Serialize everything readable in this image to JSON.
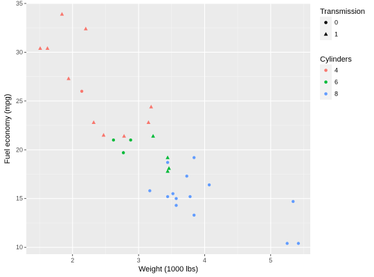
{
  "chart_data": {
    "type": "scatter",
    "title": "",
    "xlabel": "Weight (1000 lbs)",
    "ylabel": "Fuel economy (mpg)",
    "xlim": [
      1.3,
      5.6
    ],
    "ylim": [
      9.3,
      35
    ],
    "x_ticks": [
      2,
      3,
      4,
      5
    ],
    "y_ticks": [
      10,
      15,
      20,
      25,
      30,
      35
    ],
    "grid": true,
    "legend_placement": "right",
    "shape_legend": {
      "title": "Transmission",
      "entries": [
        {
          "label": "0",
          "shape": "circle"
        },
        {
          "label": "1",
          "shape": "triangle"
        }
      ]
    },
    "color_legend": {
      "title": "Cylinders",
      "entries": [
        {
          "label": "4",
          "color": "#F8766D"
        },
        {
          "label": "6",
          "color": "#00BA38"
        },
        {
          "label": "8",
          "color": "#619CFF"
        }
      ]
    },
    "points": [
      {
        "x": 1.84,
        "y": 33.9,
        "cyl": "4",
        "am": "1"
      },
      {
        "x": 2.2,
        "y": 32.4,
        "cyl": "4",
        "am": "1"
      },
      {
        "x": 1.51,
        "y": 30.4,
        "cyl": "4",
        "am": "1"
      },
      {
        "x": 1.62,
        "y": 30.4,
        "cyl": "4",
        "am": "1"
      },
      {
        "x": 1.94,
        "y": 27.3,
        "cyl": "4",
        "am": "1"
      },
      {
        "x": 2.14,
        "y": 26.0,
        "cyl": "4",
        "am": "0"
      },
      {
        "x": 3.19,
        "y": 24.4,
        "cyl": "4",
        "am": "1"
      },
      {
        "x": 3.15,
        "y": 22.8,
        "cyl": "4",
        "am": "1"
      },
      {
        "x": 2.32,
        "y": 22.8,
        "cyl": "4",
        "am": "1"
      },
      {
        "x": 2.47,
        "y": 21.5,
        "cyl": "4",
        "am": "1"
      },
      {
        "x": 2.78,
        "y": 21.4,
        "cyl": "4",
        "am": "1"
      },
      {
        "x": 3.22,
        "y": 21.4,
        "cyl": "6",
        "am": "1"
      },
      {
        "x": 2.62,
        "y": 21.0,
        "cyl": "6",
        "am": "0"
      },
      {
        "x": 2.88,
        "y": 21.0,
        "cyl": "6",
        "am": "0"
      },
      {
        "x": 2.77,
        "y": 19.7,
        "cyl": "6",
        "am": "0"
      },
      {
        "x": 3.44,
        "y": 19.2,
        "cyl": "6",
        "am": "1"
      },
      {
        "x": 3.46,
        "y": 18.1,
        "cyl": "6",
        "am": "1"
      },
      {
        "x": 3.44,
        "y": 17.8,
        "cyl": "6",
        "am": "1"
      },
      {
        "x": 3.84,
        "y": 19.2,
        "cyl": "8",
        "am": "0"
      },
      {
        "x": 3.44,
        "y": 18.7,
        "cyl": "8",
        "am": "0"
      },
      {
        "x": 3.73,
        "y": 17.3,
        "cyl": "8",
        "am": "0"
      },
      {
        "x": 4.07,
        "y": 16.4,
        "cyl": "8",
        "am": "0"
      },
      {
        "x": 3.17,
        "y": 15.8,
        "cyl": "8",
        "am": "0"
      },
      {
        "x": 3.52,
        "y": 15.5,
        "cyl": "8",
        "am": "0"
      },
      {
        "x": 3.44,
        "y": 15.2,
        "cyl": "8",
        "am": "0"
      },
      {
        "x": 3.78,
        "y": 15.2,
        "cyl": "8",
        "am": "0"
      },
      {
        "x": 3.57,
        "y": 15.0,
        "cyl": "8",
        "am": "0"
      },
      {
        "x": 3.57,
        "y": 14.3,
        "cyl": "8",
        "am": "0"
      },
      {
        "x": 5.34,
        "y": 14.7,
        "cyl": "8",
        "am": "0"
      },
      {
        "x": 3.84,
        "y": 13.3,
        "cyl": "8",
        "am": "0"
      },
      {
        "x": 5.25,
        "y": 10.4,
        "cyl": "8",
        "am": "0"
      },
      {
        "x": 5.42,
        "y": 10.4,
        "cyl": "8",
        "am": "0"
      }
    ]
  }
}
